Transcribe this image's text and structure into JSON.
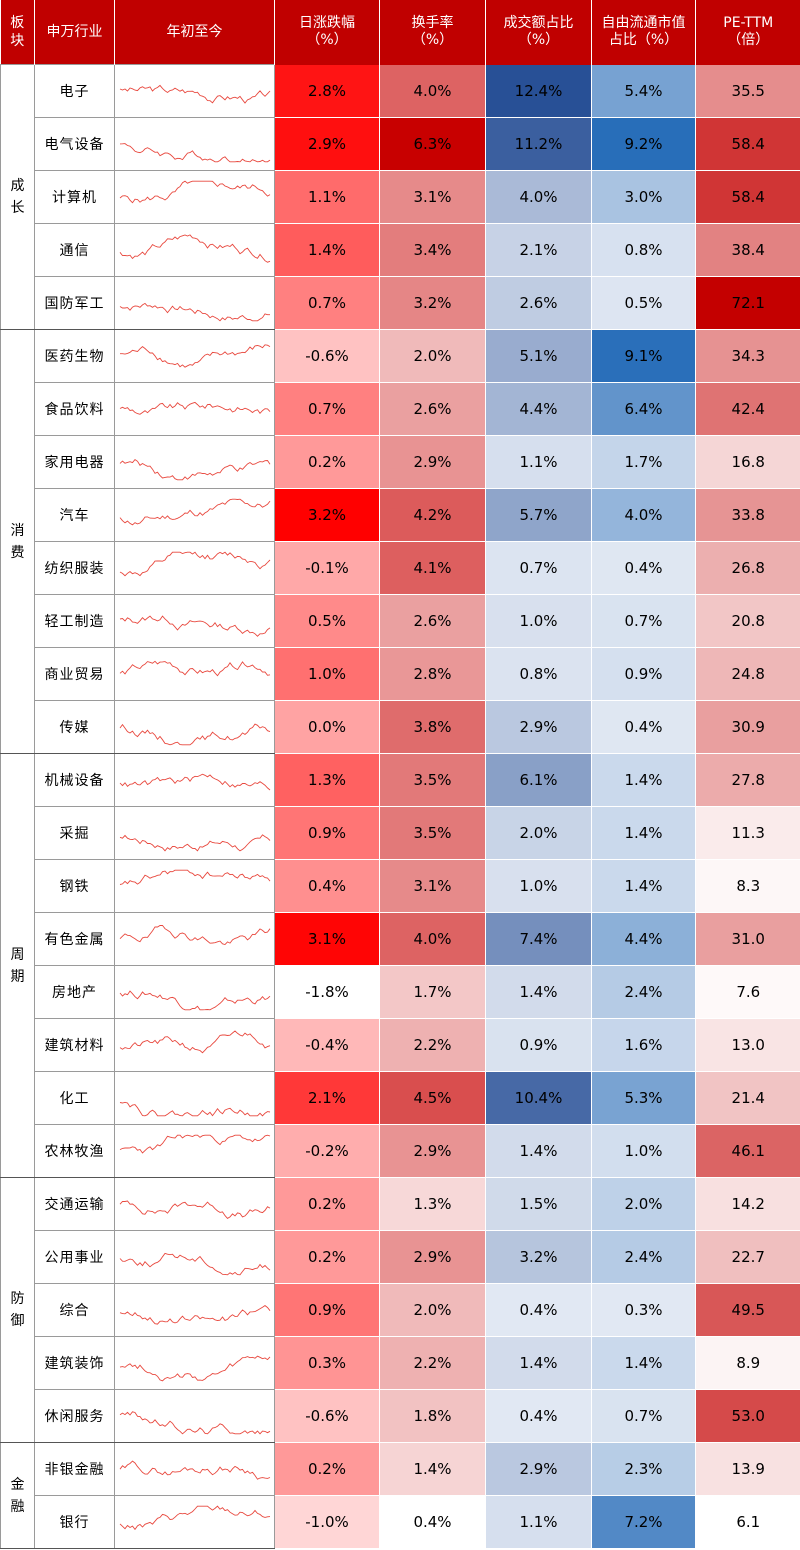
{
  "headers": {
    "segment": "板块",
    "industry": "申万行业",
    "ytd": "年初至今",
    "daily_change": [
      "日涨跌幅",
      "（%）"
    ],
    "turnover": [
      "换手率",
      "（%）"
    ],
    "volume_share": [
      "成交额占比",
      "（%）"
    ],
    "float_cap_share": [
      "自由流通市值",
      "占比（%）"
    ],
    "pe": [
      "PE-TTM",
      "（倍）"
    ]
  },
  "groups": [
    {
      "label": "成长",
      "rows": [
        {
          "industry": "电子",
          "daily_change": "2.8%",
          "turnover": "4.0%",
          "volume_share": "12.4%",
          "float_cap_share": "5.4%",
          "pe": "35.5"
        },
        {
          "industry": "电气设备",
          "daily_change": "2.9%",
          "turnover": "6.3%",
          "volume_share": "11.2%",
          "float_cap_share": "9.2%",
          "pe": "58.4"
        },
        {
          "industry": "计算机",
          "daily_change": "1.1%",
          "turnover": "3.1%",
          "volume_share": "4.0%",
          "float_cap_share": "3.0%",
          "pe": "58.4"
        },
        {
          "industry": "通信",
          "daily_change": "1.4%",
          "turnover": "3.4%",
          "volume_share": "2.1%",
          "float_cap_share": "0.8%",
          "pe": "38.4"
        },
        {
          "industry": "国防军工",
          "daily_change": "0.7%",
          "turnover": "3.2%",
          "volume_share": "2.6%",
          "float_cap_share": "0.5%",
          "pe": "72.1"
        }
      ]
    },
    {
      "label": "消费",
      "rows": [
        {
          "industry": "医药生物",
          "daily_change": "-0.6%",
          "turnover": "2.0%",
          "volume_share": "5.1%",
          "float_cap_share": "9.1%",
          "pe": "34.3"
        },
        {
          "industry": "食品饮料",
          "daily_change": "0.7%",
          "turnover": "2.6%",
          "volume_share": "4.4%",
          "float_cap_share": "6.4%",
          "pe": "42.4"
        },
        {
          "industry": "家用电器",
          "daily_change": "0.2%",
          "turnover": "2.9%",
          "volume_share": "1.1%",
          "float_cap_share": "1.7%",
          "pe": "16.8"
        },
        {
          "industry": "汽车",
          "daily_change": "3.2%",
          "turnover": "4.2%",
          "volume_share": "5.7%",
          "float_cap_share": "4.0%",
          "pe": "33.8"
        },
        {
          "industry": "纺织服装",
          "daily_change": "-0.1%",
          "turnover": "4.1%",
          "volume_share": "0.7%",
          "float_cap_share": "0.4%",
          "pe": "26.8"
        },
        {
          "industry": "轻工制造",
          "daily_change": "0.5%",
          "turnover": "2.6%",
          "volume_share": "1.0%",
          "float_cap_share": "0.7%",
          "pe": "20.8"
        },
        {
          "industry": "商业贸易",
          "daily_change": "1.0%",
          "turnover": "2.8%",
          "volume_share": "0.8%",
          "float_cap_share": "0.9%",
          "pe": "24.8"
        },
        {
          "industry": "传媒",
          "daily_change": "0.0%",
          "turnover": "3.8%",
          "volume_share": "2.9%",
          "float_cap_share": "0.4%",
          "pe": "30.9"
        }
      ]
    },
    {
      "label": "周期",
      "rows": [
        {
          "industry": "机械设备",
          "daily_change": "1.3%",
          "turnover": "3.5%",
          "volume_share": "6.1%",
          "float_cap_share": "1.4%",
          "pe": "27.8"
        },
        {
          "industry": "采掘",
          "daily_change": "0.9%",
          "turnover": "3.5%",
          "volume_share": "2.0%",
          "float_cap_share": "1.4%",
          "pe": "11.3"
        },
        {
          "industry": "钢铁",
          "daily_change": "0.4%",
          "turnover": "3.1%",
          "volume_share": "1.0%",
          "float_cap_share": "1.4%",
          "pe": "8.3"
        },
        {
          "industry": "有色金属",
          "daily_change": "3.1%",
          "turnover": "4.0%",
          "volume_share": "7.4%",
          "float_cap_share": "4.4%",
          "pe": "31.0"
        },
        {
          "industry": "房地产",
          "daily_change": "-1.8%",
          "turnover": "1.7%",
          "volume_share": "1.4%",
          "float_cap_share": "2.4%",
          "pe": "7.6"
        },
        {
          "industry": "建筑材料",
          "daily_change": "-0.4%",
          "turnover": "2.2%",
          "volume_share": "0.9%",
          "float_cap_share": "1.6%",
          "pe": "13.0"
        },
        {
          "industry": "化工",
          "daily_change": "2.1%",
          "turnover": "4.5%",
          "volume_share": "10.4%",
          "float_cap_share": "5.3%",
          "pe": "21.4"
        },
        {
          "industry": "农林牧渔",
          "daily_change": "-0.2%",
          "turnover": "2.9%",
          "volume_share": "1.4%",
          "float_cap_share": "1.0%",
          "pe": "46.1"
        }
      ]
    },
    {
      "label": "防御",
      "rows": [
        {
          "industry": "交通运输",
          "daily_change": "0.2%",
          "turnover": "1.3%",
          "volume_share": "1.5%",
          "float_cap_share": "2.0%",
          "pe": "14.2"
        },
        {
          "industry": "公用事业",
          "daily_change": "0.2%",
          "turnover": "2.9%",
          "volume_share": "3.2%",
          "float_cap_share": "2.4%",
          "pe": "22.7"
        },
        {
          "industry": "综合",
          "daily_change": "0.9%",
          "turnover": "2.0%",
          "volume_share": "0.4%",
          "float_cap_share": "0.3%",
          "pe": "49.5"
        },
        {
          "industry": "建筑装饰",
          "daily_change": "0.3%",
          "turnover": "2.2%",
          "volume_share": "1.4%",
          "float_cap_share": "1.4%",
          "pe": "8.9"
        },
        {
          "industry": "休闲服务",
          "daily_change": "-0.6%",
          "turnover": "1.8%",
          "volume_share": "0.4%",
          "float_cap_share": "0.7%",
          "pe": "53.0"
        }
      ]
    },
    {
      "label": "金融",
      "rows": [
        {
          "industry": "非银金融",
          "daily_change": "0.2%",
          "turnover": "1.4%",
          "volume_share": "2.9%",
          "float_cap_share": "2.3%",
          "pe": "13.9"
        },
        {
          "industry": "银行",
          "daily_change": "-1.0%",
          "turnover": "0.4%",
          "volume_share": "1.1%",
          "float_cap_share": "7.2%",
          "pe": "6.1"
        }
      ]
    }
  ],
  "colors": {
    "header_bg": "#c00000",
    "red_max": "#ff0000",
    "blue_max": "#2e5fa8",
    "sparkline": "#e8483e"
  },
  "chart_data": {
    "type": "table",
    "columns": [
      "板块",
      "申万行业",
      "年初至今",
      "日涨跌幅（%）",
      "换手率（%）",
      "成交额占比（%）",
      "自由流通市值占比（%）",
      "PE-TTM（倍）"
    ],
    "heatmap_columns": {
      "daily_change": "red",
      "turnover": "red",
      "volume_share": "blue",
      "float_cap_share": "blue",
      "pe": "red"
    }
  }
}
